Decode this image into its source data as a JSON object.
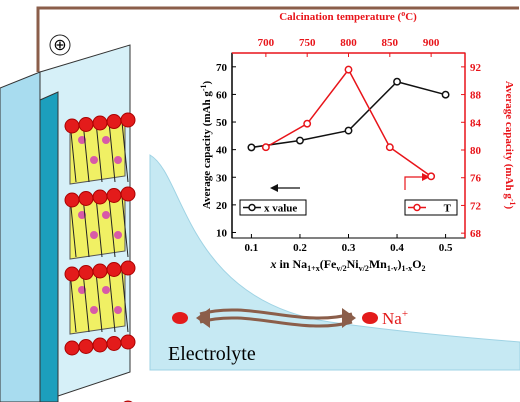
{
  "chart_data": {
    "type": "line",
    "x_label_parts": [
      "x",
      " in Na",
      "1+x",
      "(Fe",
      "v/2",
      "Ni",
      "v/2",
      "Mn",
      "1-v",
      ")",
      "1-x",
      "O",
      "2"
    ],
    "x2_label_parts": [
      "Calcination temperature (",
      "o",
      "C)"
    ],
    "y_label_parts": [
      "Average capacity (mAh g",
      "-1",
      ")"
    ],
    "y2_label_parts": [
      "Average capacity (mAh g",
      "-1",
      ")"
    ],
    "x": [
      0.1,
      0.2,
      0.3,
      0.4,
      0.5
    ],
    "x2": [
      700,
      750,
      800,
      850,
      900
    ],
    "xlim": [
      0.06,
      0.54
    ],
    "xticks": [
      0.1,
      0.2,
      0.3,
      0.4,
      0.5
    ],
    "x2lim": [
      659,
      941
    ],
    "x2ticks": [
      700,
      750,
      800,
      850,
      900
    ],
    "ylim": [
      8,
      75
    ],
    "yticks": [
      10,
      20,
      30,
      40,
      50,
      60,
      70
    ],
    "y2lim": [
      67.3,
      94
    ],
    "y2ticks": [
      68,
      72,
      76,
      80,
      84,
      88,
      92
    ],
    "series": [
      {
        "name": "x value",
        "color": "#111111",
        "values": [
          40.8,
          43.3,
          46.9,
          64.6,
          59.9
        ]
      },
      {
        "name": "T",
        "color": "#e8141a",
        "axis": "y2",
        "x_axis": "x2",
        "values": [
          80.4,
          83.8,
          91.6,
          80.4,
          76.2
        ]
      }
    ]
  },
  "illustration": {
    "terminal": "⊕",
    "ion": [
      "Na",
      "+"
    ],
    "electrolyte": "Electrolyte"
  }
}
